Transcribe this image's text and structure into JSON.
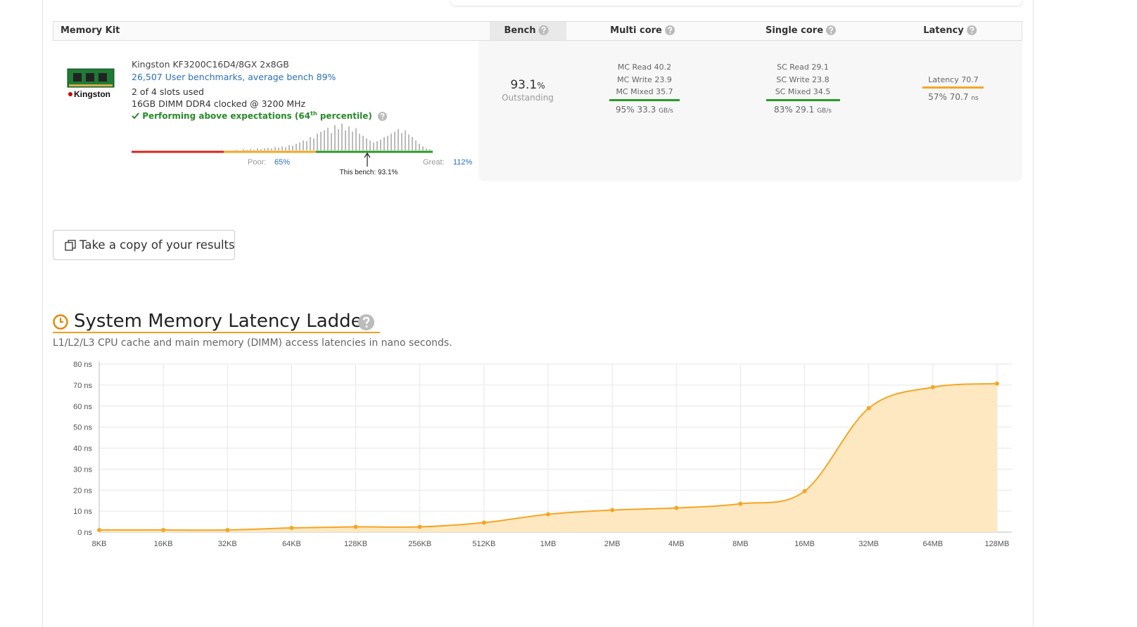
{
  "table": {
    "headers": [
      "Memory Kit",
      "Bench",
      "Multi core",
      "Single core",
      "Latency"
    ]
  },
  "kit": {
    "logo_text": "Kingston",
    "name": "Kingston KF3200C16D4/8GX 2x8GB",
    "benchmarks": "26,507 User benchmarks, average bench 89%",
    "slots": "2 of 4 slots used",
    "clock": "16GB DIMM DDR4 clocked @ 3200 MHz",
    "performance": [
      "Performing above expectations (64",
      "th",
      " percentile)"
    ]
  },
  "distribution": {
    "poor_label": "Poor:",
    "poor_value": "65%",
    "great_label": "Great:",
    "great_value": "112%",
    "this_bench": "This bench: 93.1%",
    "histogram": [
      1,
      0,
      2,
      1,
      2,
      1,
      3,
      2,
      3,
      4,
      3,
      5,
      4,
      6,
      5,
      8,
      7,
      10,
      12,
      15,
      14,
      20,
      18,
      25,
      28,
      30,
      34,
      26,
      38,
      32,
      40,
      30,
      36,
      28,
      33,
      25,
      22,
      18,
      15,
      12,
      14,
      16,
      20,
      22,
      25,
      28,
      32,
      26,
      30,
      24,
      20,
      15,
      10,
      6,
      3,
      2
    ]
  },
  "bench": {
    "value": "93.1",
    "unit": "%",
    "rating": "Outstanding"
  },
  "multi_core": {
    "lines": [
      "MC Read 40.2",
      "MC Write 23.9",
      "MC Mixed 35.7"
    ],
    "summary": "95% 33.3",
    "unit": "GB/s"
  },
  "single_core": {
    "lines": [
      "SC Read 29.1",
      "SC Write 23.8",
      "SC Mixed 34.5"
    ],
    "summary": "83% 29.1",
    "unit": "GB/s"
  },
  "latency": {
    "lines": [
      "Latency 70.7"
    ],
    "summary": "57% 70.7",
    "unit": "ns"
  },
  "button": "Take a copy of your results",
  "latency_chart": {
    "type": "line",
    "title": "System Memory Latency Ladder",
    "subtitle": "L1/L2/L3 CPU cache and main memory (DIMM) access latencies in nano seconds.",
    "categories": [
      "8KB",
      "16KB",
      "32KB",
      "64KB",
      "128KB",
      "256KB",
      "512KB",
      "1MB",
      "2MB",
      "4MB",
      "8MB",
      "16MB",
      "32MB",
      "64MB",
      "128MB"
    ],
    "values": [
      1,
      1,
      1,
      2,
      2.5,
      2.5,
      4.5,
      8.5,
      10.5,
      11.5,
      13.5,
      19.5,
      59,
      69,
      70.7
    ],
    "color": "#f5a623",
    "area_color": "#fde8c2",
    "ylim": [
      0,
      80
    ],
    "yticks": [
      {
        "value": 0,
        "label": "0 ns"
      },
      {
        "value": 10,
        "label": "10 ns"
      },
      {
        "value": 20,
        "label": "20 ns"
      },
      {
        "value": 30,
        "label": "30 ns"
      },
      {
        "value": 40,
        "label": "40 ns"
      },
      {
        "value": 50,
        "label": "50 ns"
      },
      {
        "value": 60,
        "label": "60 ns"
      },
      {
        "value": 70,
        "label": "70 ns"
      },
      {
        "value": 80,
        "label": "80 ns"
      }
    ],
    "grid": true
  }
}
